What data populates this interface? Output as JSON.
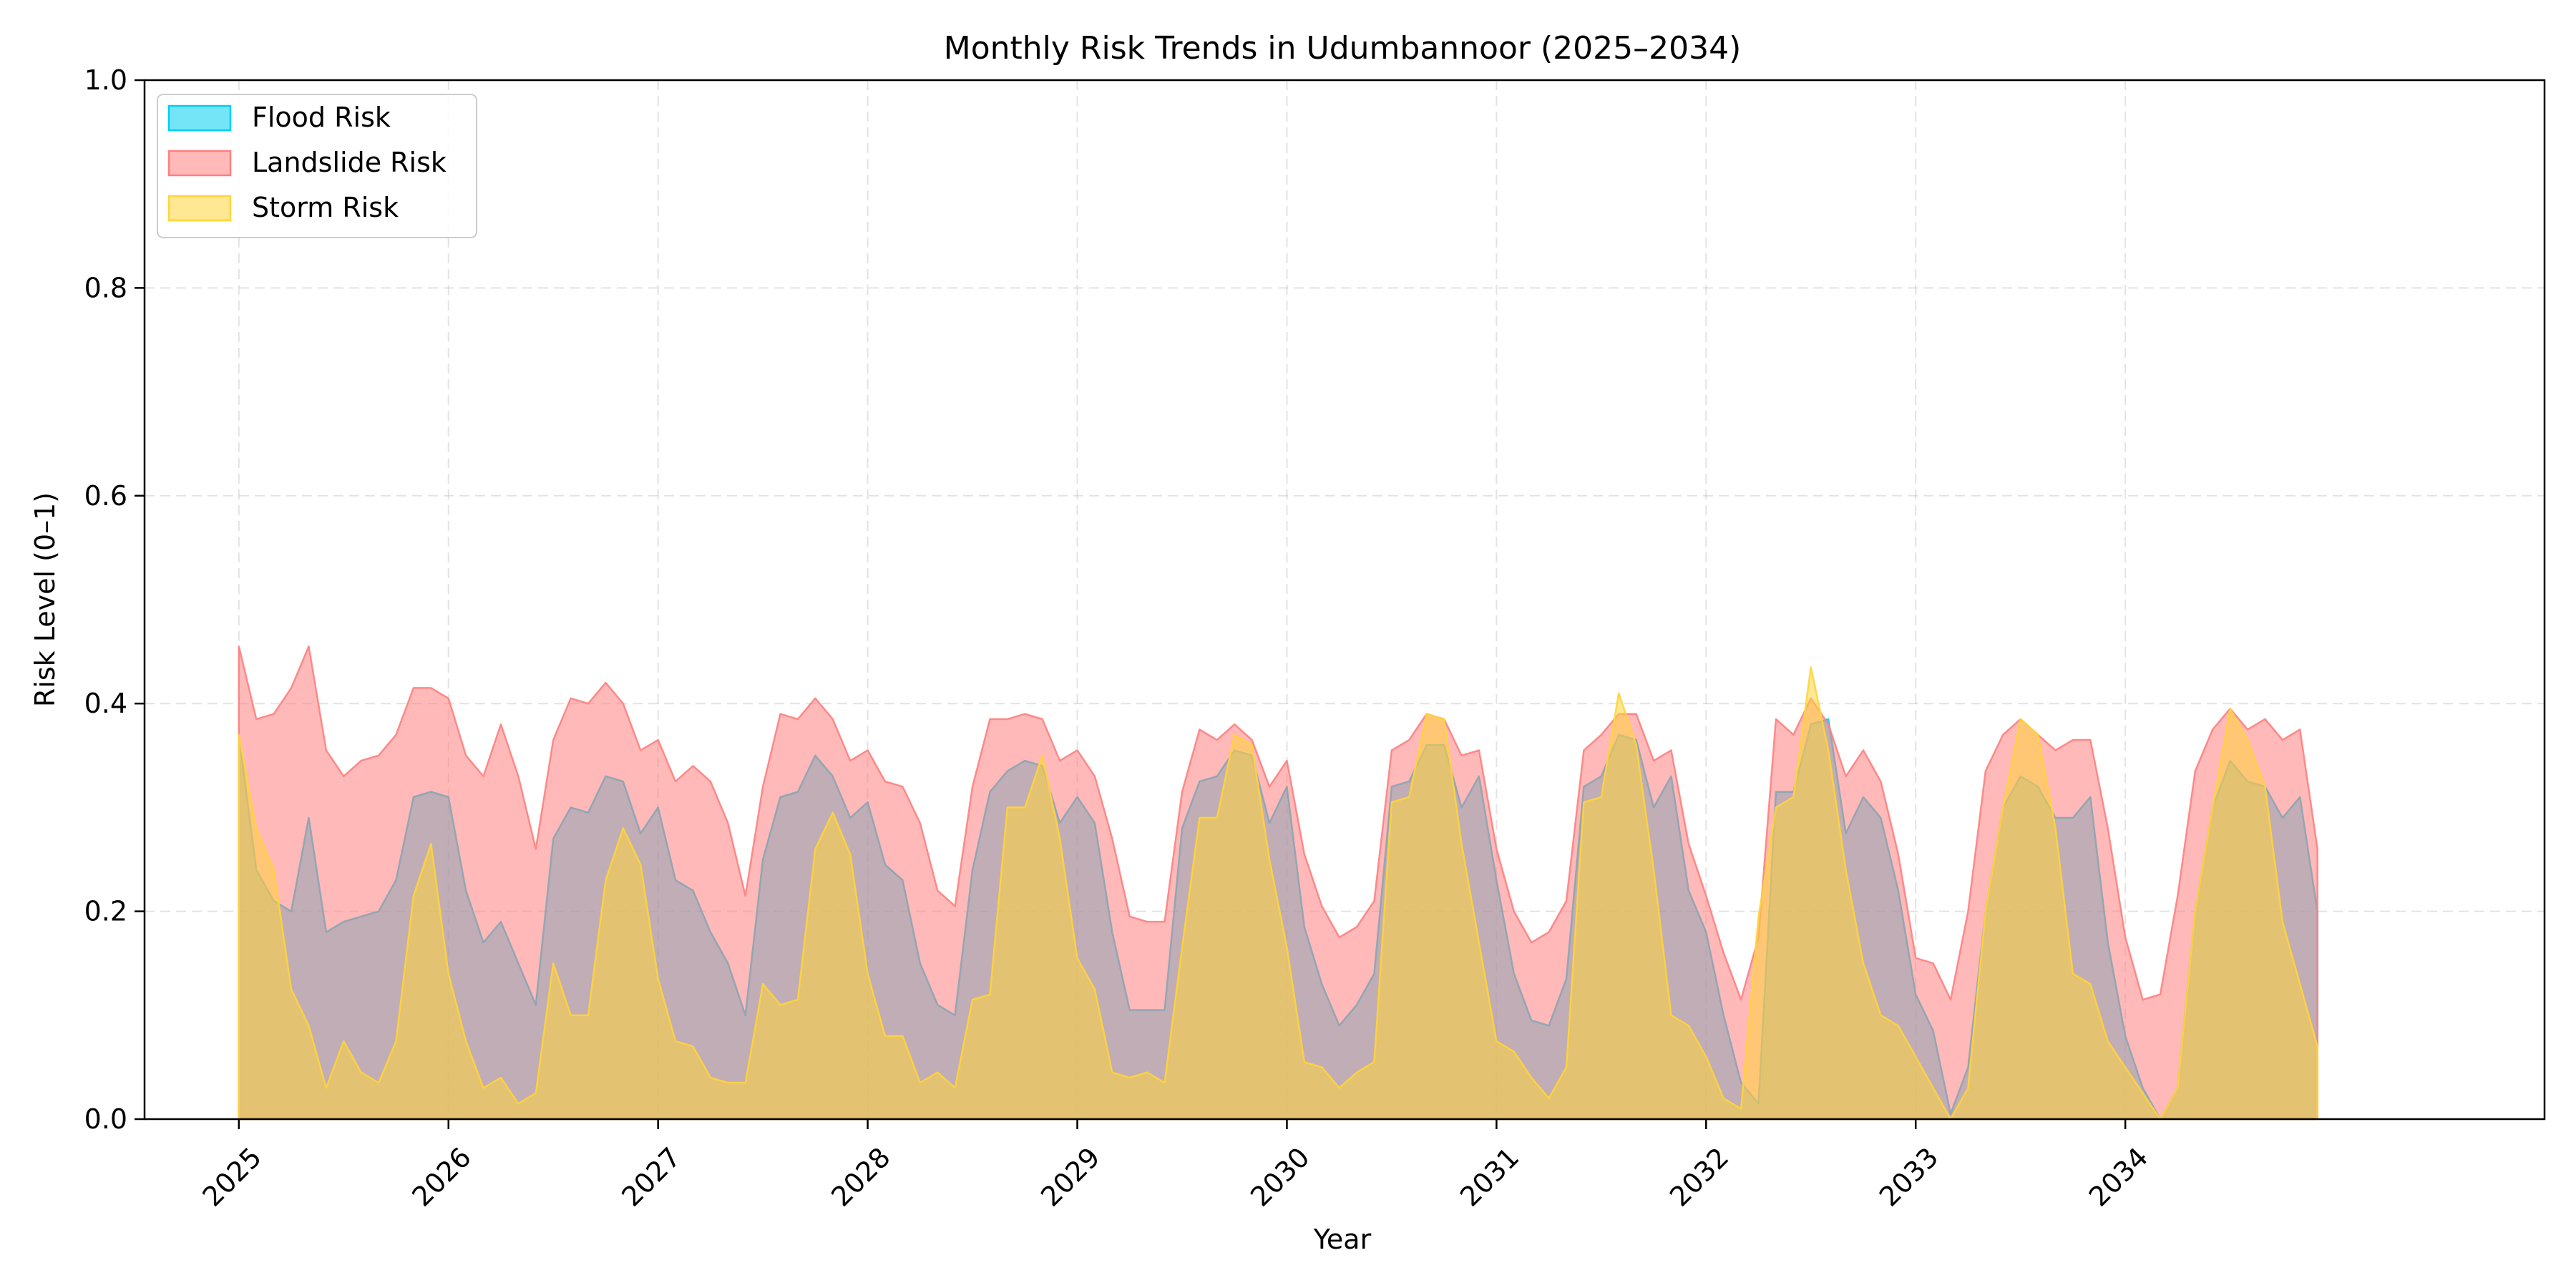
{
  "chart_data": {
    "type": "area",
    "title": "Monthly Risk Trends in Udumbannoor (2025–2034)",
    "xlabel": "Year",
    "ylabel": "Risk Level (0–1)",
    "xlim": [
      2024.55,
      2036.0
    ],
    "ylim": [
      0,
      1
    ],
    "grid": true,
    "legend_position": "top-left",
    "x_ticks": [
      2025,
      2026,
      2027,
      2028,
      2029,
      2030,
      2031,
      2032,
      2033,
      2034
    ],
    "x_tick_labels": [
      "2025",
      "2026",
      "2027",
      "2028",
      "2029",
      "2030",
      "2031",
      "2032",
      "2033",
      "2034"
    ],
    "y_ticks": [
      0,
      0.2,
      0.4,
      0.6,
      0.8,
      1.0
    ],
    "y_tick_labels": [
      "0.0",
      "0.2",
      "0.4",
      "0.6",
      "0.8",
      "1.0"
    ],
    "x_start": "2025-01",
    "x_end": "2034-12",
    "frequency": "monthly",
    "series": [
      {
        "name": "Flood Risk",
        "color": "#00d0f0",
        "values": [
          0.37,
          0.24,
          0.21,
          0.2,
          0.29,
          0.18,
          0.19,
          0.195,
          0.2,
          0.23,
          0.31,
          0.315,
          0.31,
          0.22,
          0.17,
          0.19,
          0.15,
          0.11,
          0.27,
          0.3,
          0.295,
          0.33,
          0.325,
          0.275,
          0.3,
          0.23,
          0.22,
          0.18,
          0.15,
          0.1,
          0.25,
          0.31,
          0.315,
          0.35,
          0.33,
          0.29,
          0.305,
          0.245,
          0.23,
          0.15,
          0.11,
          0.1,
          0.24,
          0.315,
          0.335,
          0.345,
          0.34,
          0.285,
          0.31,
          0.285,
          0.18,
          0.105,
          0.105,
          0.105,
          0.28,
          0.325,
          0.33,
          0.355,
          0.35,
          0.285,
          0.32,
          0.185,
          0.13,
          0.09,
          0.11,
          0.14,
          0.32,
          0.325,
          0.36,
          0.36,
          0.3,
          0.33,
          0.23,
          0.14,
          0.095,
          0.09,
          0.135,
          0.32,
          0.33,
          0.37,
          0.365,
          0.3,
          0.33,
          0.22,
          0.18,
          0.1,
          0.035,
          0.015,
          0.315,
          0.315,
          0.38,
          0.385,
          0.275,
          0.31,
          0.29,
          0.22,
          0.12,
          0.085,
          0.005,
          0.05,
          0.2,
          0.3,
          0.33,
          0.32,
          0.29,
          0.29,
          0.31,
          0.17,
          0.08,
          0.03,
          0.0,
          0.03,
          0.2,
          0.3,
          0.345,
          0.325,
          0.32,
          0.29,
          0.31,
          0.2
        ]
      },
      {
        "name": "Landslide Risk",
        "color": "#ff7f7f",
        "values": [
          0.455,
          0.385,
          0.39,
          0.415,
          0.455,
          0.355,
          0.33,
          0.345,
          0.35,
          0.37,
          0.415,
          0.415,
          0.405,
          0.35,
          0.33,
          0.38,
          0.33,
          0.26,
          0.365,
          0.405,
          0.4,
          0.42,
          0.4,
          0.355,
          0.365,
          0.325,
          0.34,
          0.325,
          0.285,
          0.215,
          0.32,
          0.39,
          0.385,
          0.405,
          0.385,
          0.345,
          0.355,
          0.325,
          0.32,
          0.285,
          0.22,
          0.205,
          0.32,
          0.385,
          0.385,
          0.39,
          0.385,
          0.345,
          0.355,
          0.33,
          0.27,
          0.195,
          0.19,
          0.19,
          0.315,
          0.375,
          0.365,
          0.38,
          0.365,
          0.32,
          0.345,
          0.255,
          0.205,
          0.175,
          0.185,
          0.21,
          0.355,
          0.365,
          0.39,
          0.385,
          0.35,
          0.355,
          0.26,
          0.2,
          0.17,
          0.18,
          0.21,
          0.355,
          0.37,
          0.39,
          0.39,
          0.345,
          0.355,
          0.265,
          0.215,
          0.16,
          0.115,
          0.175,
          0.385,
          0.37,
          0.405,
          0.38,
          0.33,
          0.355,
          0.325,
          0.255,
          0.155,
          0.15,
          0.115,
          0.2,
          0.335,
          0.37,
          0.385,
          0.37,
          0.355,
          0.365,
          0.365,
          0.28,
          0.175,
          0.115,
          0.12,
          0.215,
          0.335,
          0.375,
          0.395,
          0.375,
          0.385,
          0.365,
          0.375,
          0.26
        ]
      },
      {
        "name": "Storm Risk",
        "color": "#ffd43b",
        "values": [
          0.37,
          0.28,
          0.24,
          0.125,
          0.09,
          0.03,
          0.075,
          0.045,
          0.035,
          0.075,
          0.215,
          0.265,
          0.14,
          0.075,
          0.03,
          0.04,
          0.015,
          0.025,
          0.15,
          0.1,
          0.1,
          0.23,
          0.28,
          0.245,
          0.135,
          0.075,
          0.07,
          0.04,
          0.035,
          0.035,
          0.13,
          0.11,
          0.115,
          0.26,
          0.295,
          0.255,
          0.14,
          0.08,
          0.08,
          0.035,
          0.045,
          0.03,
          0.115,
          0.12,
          0.3,
          0.3,
          0.35,
          0.27,
          0.155,
          0.125,
          0.045,
          0.04,
          0.045,
          0.035,
          0.165,
          0.29,
          0.29,
          0.37,
          0.36,
          0.25,
          0.165,
          0.055,
          0.05,
          0.03,
          0.045,
          0.055,
          0.305,
          0.31,
          0.39,
          0.385,
          0.265,
          0.17,
          0.075,
          0.065,
          0.04,
          0.02,
          0.05,
          0.305,
          0.31,
          0.41,
          0.36,
          0.24,
          0.1,
          0.09,
          0.06,
          0.02,
          0.01,
          0.195,
          0.3,
          0.31,
          0.435,
          0.355,
          0.24,
          0.15,
          0.1,
          0.09,
          0.06,
          0.03,
          0.0,
          0.03,
          0.2,
          0.3,
          0.385,
          0.37,
          0.28,
          0.14,
          0.13,
          0.075,
          0.05,
          0.025,
          0.0,
          0.03,
          0.2,
          0.3,
          0.395,
          0.365,
          0.32,
          0.19,
          0.13,
          0.07
        ]
      }
    ]
  }
}
